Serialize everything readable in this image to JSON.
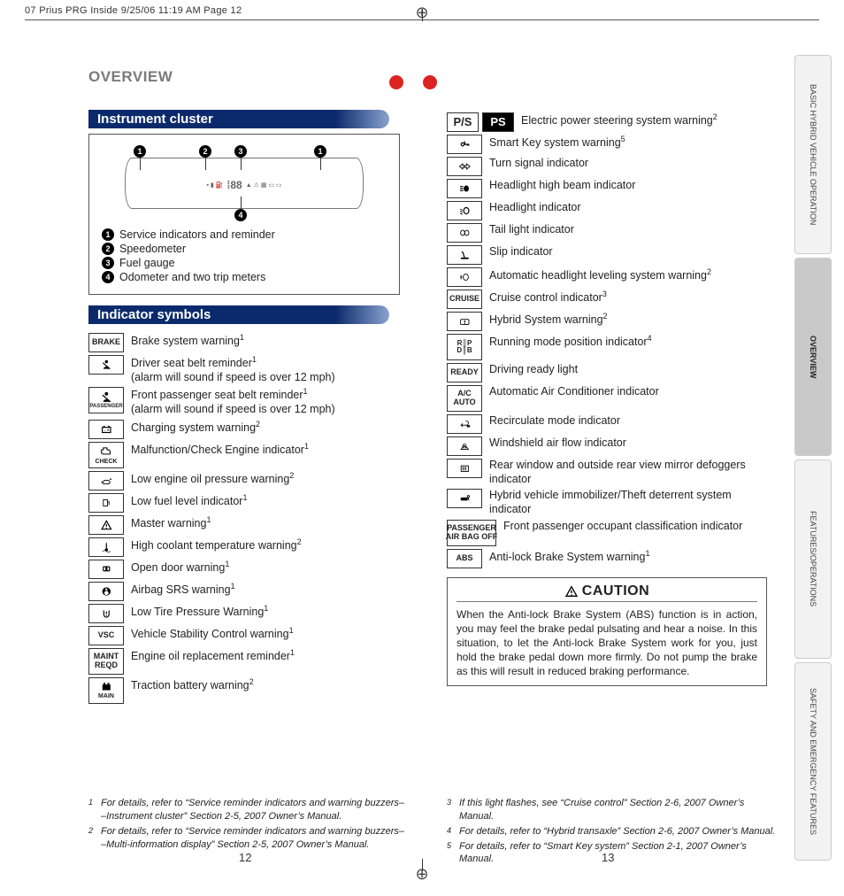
{
  "slug": "07 Prius PRG Inside  9/25/06  11:19 AM  Page 12",
  "overview": "OVERVIEW",
  "pageLeft": "12",
  "pageRight": "13",
  "cropGlyph": "⊕",
  "section1": {
    "title": "Instrument cluster"
  },
  "cluster": {
    "items": [
      {
        "n": "1",
        "label": "Service indicators and reminder"
      },
      {
        "n": "2",
        "label": "Speedometer"
      },
      {
        "n": "3",
        "label": "Fuel gauge"
      },
      {
        "n": "4",
        "label": "Odometer and two trip meters"
      }
    ]
  },
  "section2": {
    "title": "Indicator symbols"
  },
  "leftSymbols": [
    {
      "icon": "BRAKE",
      "desc": "Brake system warning",
      "sup": "1"
    },
    {
      "icon": "seatbelt",
      "desc": "Driver seat belt reminder",
      "sup": "1",
      "extra": "(alarm will sound if speed is over 12 mph)"
    },
    {
      "icon": "seatbelt2",
      "desc": "Front passenger seat belt reminder",
      "sup": "1",
      "extra": "(alarm will sound if speed is over 12 mph)"
    },
    {
      "icon": "battery",
      "desc": "Charging system warning",
      "sup": "2"
    },
    {
      "icon": "engine",
      "desc": "Malfunction/Check Engine indicator",
      "sup": "1"
    },
    {
      "icon": "oilcan",
      "desc": "Low engine oil pressure warning",
      "sup": "2"
    },
    {
      "icon": "fuel",
      "desc": "Low fuel level indicator",
      "sup": "1"
    },
    {
      "icon": "warn",
      "desc": "Master warning",
      "sup": "1"
    },
    {
      "icon": "temp",
      "desc": "High coolant temperature warning",
      "sup": "2"
    },
    {
      "icon": "door",
      "desc": "Open door warning",
      "sup": "1"
    },
    {
      "icon": "airbag",
      "desc": "Airbag SRS warning",
      "sup": "1"
    },
    {
      "icon": "tire",
      "desc": "Low Tire Pressure Warning",
      "sup": "1"
    },
    {
      "icon": "VSC",
      "desc": "Vehicle Stability Control warning",
      "sup": "1"
    },
    {
      "icon": "MAINT\nREQD",
      "desc": "Engine oil replacement reminder",
      "sup": "1"
    },
    {
      "icon": "tbatt",
      "desc": "Traction battery warning",
      "sup": "2"
    }
  ],
  "rightSymbols": [
    {
      "iconA": "P/S",
      "iconB": "PS",
      "desc": "Electric power steering system warning",
      "sup": "2"
    },
    {
      "icon": "key",
      "desc": "Smart Key system warning",
      "sup": "5"
    },
    {
      "icon": "turn",
      "desc": "Turn signal indicator"
    },
    {
      "icon": "highbeam",
      "desc": "Headlight high beam indicator"
    },
    {
      "icon": "headlight",
      "desc": "Headlight indicator"
    },
    {
      "icon": "tail",
      "desc": "Tail light indicator"
    },
    {
      "icon": "slip",
      "desc": "Slip indicator"
    },
    {
      "icon": "level",
      "desc": "Automatic headlight leveling system warning",
      "sup": "2"
    },
    {
      "icon": "CRUISE",
      "desc": "Cruise control indicator",
      "sup": "3"
    },
    {
      "icon": "hybrid",
      "desc": "Hybrid System warning",
      "sup": "2"
    },
    {
      "icon": "RNPDB",
      "desc": "Running mode position indicator",
      "sup": "4"
    },
    {
      "icon": "READY",
      "desc": "Driving ready light"
    },
    {
      "icon": "A/C\nAUTO",
      "desc": "Automatic Air Conditioner indicator"
    },
    {
      "icon": "recirc",
      "desc": "Recirculate mode indicator"
    },
    {
      "icon": "defrostF",
      "desc": "Windshield air flow indicator"
    },
    {
      "icon": "defrostR",
      "desc": "Rear window and outside rear view mirror defoggers indicator"
    },
    {
      "icon": "car-key",
      "desc": "Hybrid vehicle immobilizer/Theft deterrent system indicator"
    },
    {
      "icon": "PASSENGER\nAIR BAG OFF",
      "wide": true,
      "desc": "Front passenger occupant classification indicator"
    },
    {
      "icon": "ABS",
      "desc": "Anti-lock Brake System warning",
      "sup": "1"
    }
  ],
  "caution": {
    "head": "CAUTION",
    "body": "When the Anti-lock Brake System (ABS) function is in action, you may feel the brake pedal pulsating and hear a noise. In this situation, to let the Anti-lock Brake System work for you, just hold the brake pedal down more firmly. Do not pump the brake as this will result in reduced braking performance."
  },
  "footnotesLeft": [
    {
      "n": "1",
      "t": "For details, refer to “Service reminder indicators and warning buzzers– –Instrument cluster” Section 2-5, 2007 Owner’s Manual."
    },
    {
      "n": "2",
      "t": "For details, refer to “Service reminder indicators and warning buzzers– –Multi-information display” Section 2-5, 2007 Owner’s Manual."
    }
  ],
  "footnotesRight": [
    {
      "n": "3",
      "t": "If this light flashes, see “Cruise control” Section 2-6, 2007 Owner’s Manual."
    },
    {
      "n": "4",
      "t": "For details, refer to “Hybrid transaxle” Section 2-6, 2007 Owner’s Manual."
    },
    {
      "n": "5",
      "t": "For details, refer to “Smart Key system” Section 2-1, 2007 Owner’s Manual."
    }
  ],
  "tabs": [
    {
      "label": "BASIC HYBRID VEHICLE OPERATION",
      "active": false
    },
    {
      "label": "OVERVIEW",
      "active": true
    },
    {
      "label": "FEATURES/OPERATIONS",
      "active": false
    },
    {
      "label": "SAFETY AND EMERGENCY FEATURES",
      "active": false
    }
  ],
  "colors": {
    "headerGradStart": "#0b2a6b",
    "red": "#d22",
    "border": "#555"
  }
}
